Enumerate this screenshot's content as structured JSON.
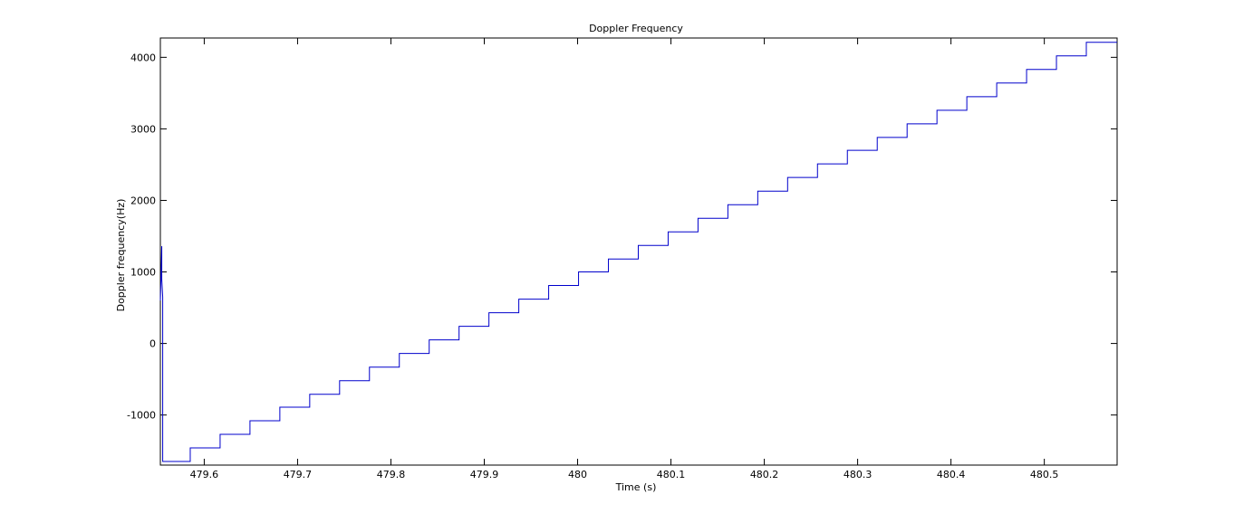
{
  "chart_data": {
    "type": "line",
    "title": "Doppler Frequency",
    "xlabel": "Time (s)",
    "ylabel": "Doppler frequency(Hz)",
    "xlim": [
      479.553,
      480.578
    ],
    "ylim": [
      -1700,
      4270
    ],
    "x_ticks": [
      479.6,
      479.7,
      479.8,
      479.9,
      480,
      480.1,
      480.2,
      480.3,
      480.4,
      480.5
    ],
    "x_tick_labels": [
      "479.6",
      "479.7",
      "479.8",
      "479.9",
      "480",
      "480.1",
      "480.2",
      "480.3",
      "480.4",
      "480.5"
    ],
    "y_ticks": [
      -1000,
      0,
      1000,
      2000,
      3000,
      4000
    ],
    "y_tick_labels": [
      "-1000",
      "0",
      "1000",
      "2000",
      "3000",
      "4000"
    ],
    "grid": false,
    "series": [
      {
        "color": "#0000cc",
        "x": [
          479.553,
          479.5545,
          479.5545,
          479.5555,
          479.5555,
          479.5555,
          479.5555,
          479.585,
          479.585,
          479.617,
          479.617,
          479.649,
          479.649,
          479.681,
          479.681,
          479.713,
          479.713,
          479.745,
          479.745,
          479.777,
          479.777,
          479.809,
          479.809,
          479.841,
          479.841,
          479.873,
          479.873,
          479.905,
          479.905,
          479.937,
          479.937,
          479.969,
          479.969,
          480.001,
          480.001,
          480.033,
          480.033,
          480.065,
          480.065,
          480.097,
          480.097,
          480.129,
          480.129,
          480.161,
          480.161,
          480.193,
          480.193,
          480.225,
          480.225,
          480.257,
          480.257,
          480.289,
          480.289,
          480.321,
          480.321,
          480.353,
          480.353,
          480.385,
          480.385,
          480.417,
          480.417,
          480.449,
          480.449,
          480.481,
          480.481,
          480.513,
          480.513,
          480.545,
          480.545,
          480.578
        ],
        "y": [
          600,
          1360,
          900,
          650,
          -1000,
          -1650,
          -1650,
          -1650,
          -1460,
          -1460,
          -1270,
          -1270,
          -1080,
          -1080,
          -890,
          -890,
          -710,
          -710,
          -520,
          -520,
          -330,
          -330,
          -140,
          -140,
          50,
          50,
          240,
          240,
          430,
          430,
          620,
          620,
          810,
          810,
          1000,
          1000,
          1180,
          1180,
          1370,
          1370,
          1560,
          1560,
          1750,
          1750,
          1940,
          1940,
          2130,
          2130,
          2320,
          2320,
          2510,
          2510,
          2700,
          2700,
          2880,
          2880,
          3070,
          3070,
          3260,
          3260,
          3450,
          3450,
          3640,
          3640,
          3830,
          3830,
          4020,
          4020,
          4210,
          4210
        ]
      }
    ]
  }
}
